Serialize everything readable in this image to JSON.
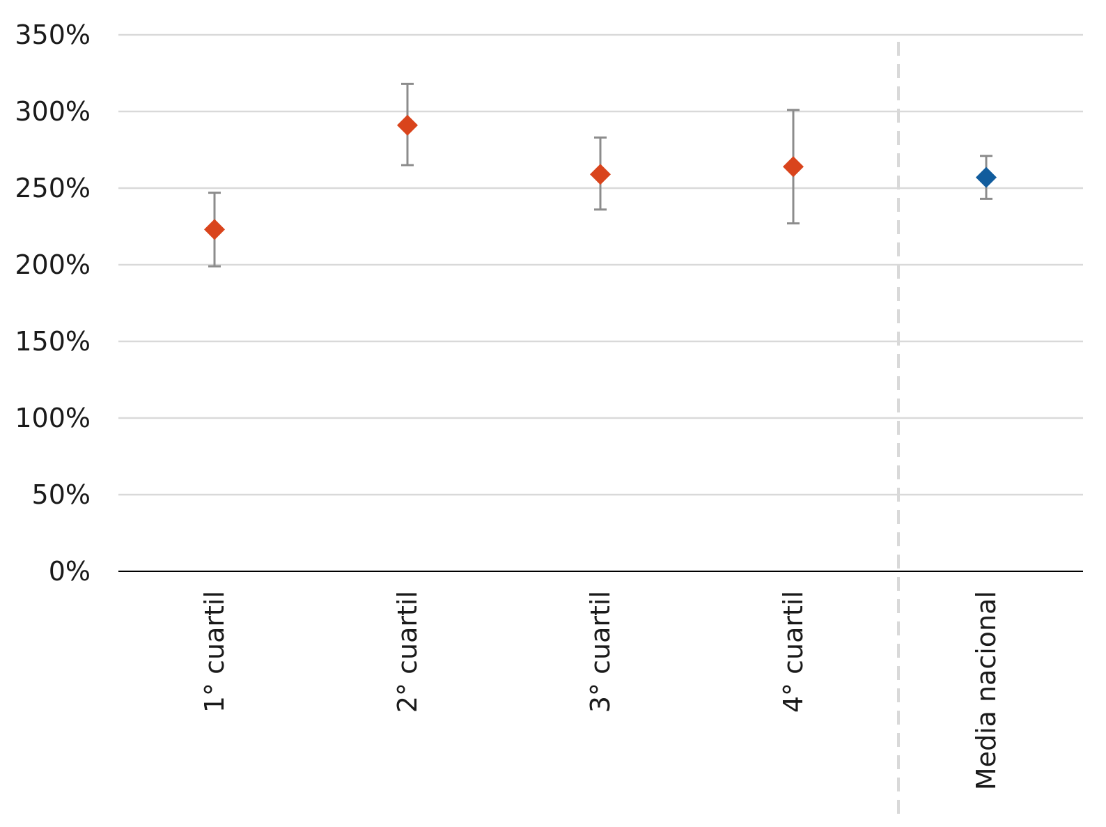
{
  "chart_data": {
    "type": "scatter",
    "title": "",
    "xlabel": "",
    "ylabel": "",
    "ylim": [
      0,
      350
    ],
    "y_ticks": [
      0,
      50,
      100,
      150,
      200,
      250,
      300,
      350
    ],
    "y_tick_format": "percent",
    "grid": true,
    "legend": "none",
    "categories": [
      "1° cuartil",
      "2° cuartil",
      "3° cuartil",
      "4° cuartil",
      "Media nacional"
    ],
    "values": [
      223,
      291,
      259,
      264,
      257
    ],
    "error_low": [
      199,
      265,
      236,
      227,
      243
    ],
    "error_high": [
      247,
      318,
      283,
      301,
      271
    ],
    "point_colors": [
      "#d9441c",
      "#d9441c",
      "#d9441c",
      "#d9441c",
      "#115c9d"
    ],
    "error_bar_color": "#8c8c8c",
    "gridline_color": "#d9d9d9",
    "divider_after_category": 4
  }
}
